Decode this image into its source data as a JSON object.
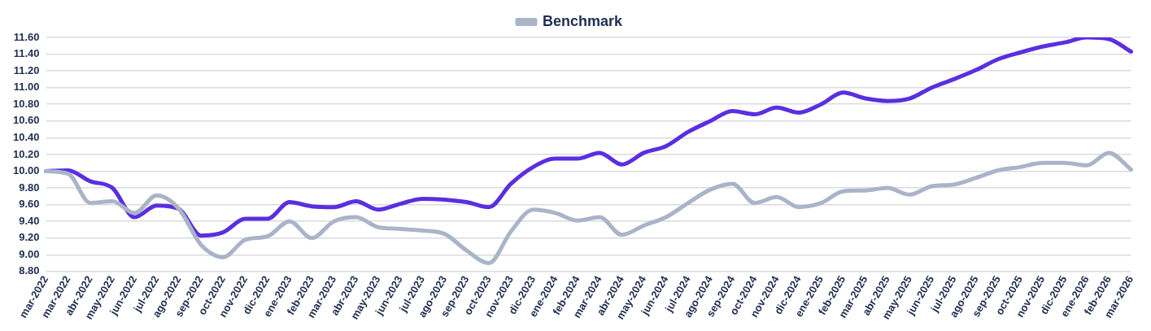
{
  "chart_data": {
    "type": "line",
    "categories": [
      "mar-2022",
      "mar-2022",
      "abr-2022",
      "may-2022",
      "jun-2022",
      "jul-2022",
      "ago-2022",
      "sep-2022",
      "oct-2022",
      "nov-2022",
      "dic-2022",
      "ene-2023",
      "feb-2023",
      "mar-2023",
      "abr-2023",
      "may-2023",
      "jun-2023",
      "jul-2023",
      "ago-2023",
      "sep-2023",
      "oct-2023",
      "nov-2023",
      "dic-2023",
      "ene-2024",
      "feb-2024",
      "mar-2024",
      "abr-2024",
      "may-2024",
      "jun-2024",
      "jul-2024",
      "ago-2024",
      "sep-2024",
      "oct-2024",
      "nov-2024",
      "dic-2024",
      "ene-2025",
      "feb-2025",
      "mar-2025",
      "abr-2025",
      "may-2025",
      "jun-2025",
      "jul-2025",
      "ago-2025",
      "sep-2025",
      "oct-2025",
      "nov-2025",
      "dic-2025",
      "ene-2026",
      "feb-2026",
      "mar-2026"
    ],
    "series": [
      {
        "name": "Benchmark",
        "color": "#aab4c8",
        "values": [
          10.0,
          9.97,
          9.62,
          9.64,
          9.5,
          9.71,
          9.55,
          9.12,
          8.97,
          9.18,
          9.22,
          9.4,
          9.2,
          9.4,
          9.45,
          9.33,
          9.31,
          9.29,
          9.25,
          9.05,
          8.9,
          9.28,
          9.54,
          9.5,
          9.41,
          9.45,
          9.24,
          9.35,
          9.45,
          9.62,
          9.78,
          9.85,
          9.62,
          9.69,
          9.57,
          9.62,
          9.76,
          9.77,
          9.8,
          9.72,
          9.82,
          9.84,
          9.92,
          10.01,
          10.05,
          10.1,
          10.1,
          10.07,
          10.22,
          10.02
        ]
      },
      {
        "color": "#5b2ee0",
        "values": [
          10.0,
          10.01,
          9.88,
          9.8,
          9.45,
          9.59,
          9.55,
          9.23,
          9.27,
          9.43,
          9.43,
          9.63,
          9.58,
          9.57,
          9.64,
          9.54,
          9.61,
          9.67,
          9.66,
          9.63,
          9.57,
          9.85,
          10.05,
          10.15,
          10.15,
          10.22,
          10.08,
          10.22,
          10.3,
          10.47,
          10.6,
          10.72,
          10.68,
          10.76,
          10.7,
          10.8,
          10.94,
          10.87,
          10.84,
          10.87,
          11.0,
          11.1,
          11.21,
          11.34,
          11.42,
          11.49,
          11.54,
          11.6,
          11.58,
          11.43
        ]
      }
    ],
    "ylim": [
      8.8,
      11.6
    ],
    "yticks": [
      {
        "value": 8.8,
        "label": "8.80"
      },
      {
        "value": 9.0,
        "label": "9.00"
      },
      {
        "value": 9.2,
        "label": "9.20"
      },
      {
        "value": 9.4,
        "label": "9.40"
      },
      {
        "value": 9.6,
        "label": "9.60"
      },
      {
        "value": 9.8,
        "label": "9.80"
      },
      {
        "value": 10.0,
        "label": "10.00"
      },
      {
        "value": 10.2,
        "label": "10.20"
      },
      {
        "value": 10.4,
        "label": "10.40"
      },
      {
        "value": 10.6,
        "label": "10.60"
      },
      {
        "value": 10.8,
        "label": "10.80"
      },
      {
        "value": 11.0,
        "label": "11.00"
      },
      {
        "value": 11.2,
        "label": "11.20"
      },
      {
        "value": 11.4,
        "label": "11.40"
      },
      {
        "value": 11.6,
        "label": "11.60"
      }
    ],
    "grid": "y",
    "legend": "top",
    "marker": "none",
    "line_style": "solid"
  }
}
